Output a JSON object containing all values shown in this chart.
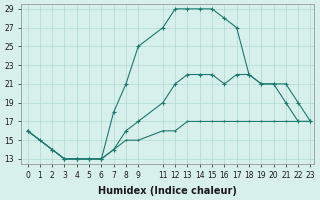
{
  "xlabel": "Humidex (Indice chaleur)",
  "ylabel": "",
  "background_color": "#d8f0ec",
  "grid_color": "#b0d8d0",
  "line_color": "#1a7a6e",
  "xlim": [
    0,
    23
  ],
  "ylim": [
    13,
    29
  ],
  "xticks": [
    0,
    1,
    2,
    3,
    4,
    5,
    6,
    7,
    8,
    9,
    11,
    12,
    13,
    14,
    15,
    16,
    17,
    18,
    19,
    20,
    21,
    22,
    23
  ],
  "yticks": [
    13,
    15,
    17,
    19,
    21,
    23,
    25,
    27,
    29
  ],
  "line1_x": [
    0,
    1,
    2,
    3,
    4,
    5,
    6,
    7,
    8,
    9,
    11,
    12,
    13,
    14,
    15,
    16,
    17,
    18,
    19,
    20,
    21,
    22,
    23
  ],
  "line1_y": [
    16,
    15,
    14,
    13,
    13,
    13,
    13,
    18,
    21,
    25,
    27,
    29,
    29,
    29,
    29,
    28,
    27,
    22,
    21,
    21,
    19,
    17,
    17
  ],
  "line2_x": [
    0,
    2,
    3,
    4,
    5,
    6,
    7,
    8,
    9,
    11,
    12,
    13,
    14,
    15,
    16,
    17,
    18,
    19,
    20,
    21,
    22,
    23
  ],
  "line2_y": [
    16,
    14,
    13,
    13,
    13,
    13,
    14,
    16,
    17,
    19,
    21,
    22,
    22,
    22,
    21,
    22,
    22,
    21,
    21,
    21,
    19,
    17
  ],
  "line3_x": [
    0,
    2,
    3,
    4,
    5,
    6,
    7,
    8,
    9,
    11,
    12,
    13,
    14,
    15,
    16,
    17,
    18,
    19,
    20,
    21,
    22,
    23
  ],
  "line3_y": [
    16,
    14,
    13,
    13,
    13,
    13,
    14,
    15,
    15,
    16,
    16,
    17,
    17,
    17,
    17,
    17,
    17,
    17,
    17,
    17,
    17,
    17
  ]
}
